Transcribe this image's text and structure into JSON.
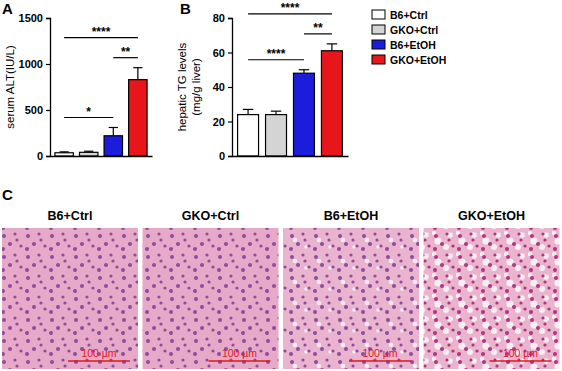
{
  "chart_data": [
    {
      "type": "bar",
      "panel": "A",
      "ylabel": [
        "serum ALT(IU/L)"
      ],
      "categories": [
        null,
        null,
        null,
        null
      ],
      "values": [
        35,
        40,
        220,
        830
      ],
      "errors": [
        10,
        12,
        90,
        130
      ],
      "colors": [
        "#ffffff",
        "#d4d4d4",
        "#1c1cdd",
        "#e8161a"
      ],
      "ylim": [
        0,
        1500
      ],
      "yticks": [
        0,
        500,
        1000,
        1500
      ],
      "tick_labels": "y",
      "annotations": [
        {
          "pair": [
            0,
            2
          ],
          "text": "*"
        },
        {
          "pair": [
            2,
            3
          ],
          "text": "**"
        },
        {
          "pair": [
            0,
            3
          ],
          "text": "****"
        }
      ]
    },
    {
      "type": "bar",
      "panel": "B",
      "ylabel": [
        "hepatic TG levels",
        "(mg/g liver)"
      ],
      "categories": [
        "B6+Ctrl",
        "GKO+Ctrl",
        "B6+EtOH",
        "GKO+EtOH"
      ],
      "values": [
        24,
        24,
        48,
        61
      ],
      "errors": [
        3,
        2,
        2,
        4
      ],
      "colors": [
        "#ffffff",
        "#d4d4d4",
        "#1c1cdd",
        "#e8161a"
      ],
      "ylim": [
        0,
        80
      ],
      "yticks": [
        0,
        20,
        40,
        60,
        80
      ],
      "tick_labels": "y",
      "legend": "upper right",
      "annotations": [
        {
          "pair": [
            0,
            2
          ],
          "text": "****"
        },
        {
          "pair": [
            2,
            3
          ],
          "text": "**"
        },
        {
          "pair": [
            0,
            3
          ],
          "text": "****"
        }
      ]
    }
  ],
  "histology": {
    "panel": "C",
    "images": [
      {
        "label": "B6+Ctrl",
        "scale_bar": "100 µm"
      },
      {
        "label": "GKO+Ctrl",
        "scale_bar": "100 µm"
      },
      {
        "label": "B6+EtOH",
        "scale_bar": "100 µm"
      },
      {
        "label": "GKO+EtOH",
        "scale_bar": "100 µm"
      }
    ]
  }
}
